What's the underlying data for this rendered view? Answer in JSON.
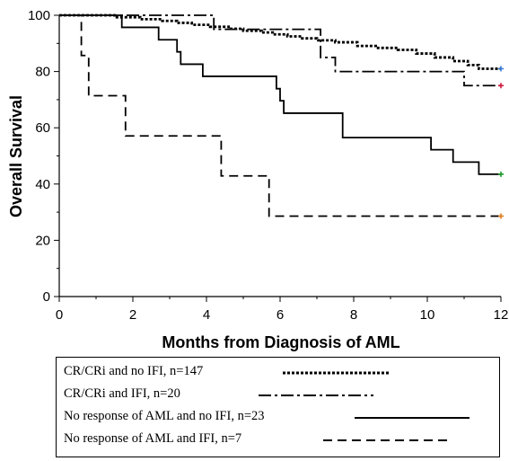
{
  "chart_data": {
    "type": "line",
    "xlabel": "Months from Diagnosis of AML",
    "ylabel": "Overall Survival",
    "xlim": [
      0,
      12
    ],
    "ylim": [
      0,
      100
    ],
    "xticks": [
      0,
      2,
      4,
      6,
      8,
      10,
      12
    ],
    "yticks": [
      0,
      20,
      40,
      60,
      80,
      100
    ],
    "grid": false,
    "legend": "bottom",
    "series": [
      {
        "name": "CR/CRi and no IFI, n=147",
        "style": "dotted",
        "censor_color": "#3a7fd5",
        "x": [
          0,
          1.5,
          2.2,
          2.8,
          3.2,
          3.6,
          4.1,
          4.6,
          5.0,
          5.5,
          5.8,
          6.2,
          6.6,
          7.0,
          7.5,
          8.1,
          8.6,
          9.2,
          9.7,
          10.2,
          10.7,
          11.1,
          11.4,
          12
        ],
        "y": [
          100,
          99.3,
          98.6,
          98.0,
          97.3,
          96.6,
          95.9,
          95.2,
          94.5,
          93.9,
          93.2,
          92.5,
          91.8,
          91.1,
          90.4,
          89.1,
          88.4,
          87.7,
          86.4,
          85.0,
          83.7,
          82.3,
          81.0,
          81.0
        ]
      },
      {
        "name": "CR/CRi and IFI, n=20",
        "style": "dashdot",
        "censor_color": "#d11a3d",
        "x": [
          0,
          4.2,
          6.9,
          7.1,
          7.5,
          11.0,
          12
        ],
        "y": [
          100,
          95,
          95,
          85,
          80,
          75,
          75
        ]
      },
      {
        "name": "No response of AML and no IFI, n=23",
        "style": "solid",
        "censor_color": "#1a9a2a",
        "x": [
          0,
          1.7,
          2.7,
          3.2,
          3.3,
          3.9,
          5.9,
          6.0,
          6.1,
          7.7,
          10.1,
          10.7,
          11.4,
          12
        ],
        "y": [
          100,
          95.7,
          91.3,
          87.0,
          82.6,
          78.3,
          73.9,
          69.6,
          65.2,
          56.5,
          52.2,
          47.8,
          43.5,
          43.5
        ]
      },
      {
        "name": "No response of AML and IFI, n=7",
        "style": "dashed",
        "censor_color": "#e07a1a",
        "x": [
          0,
          0.6,
          0.8,
          1.8,
          4.4,
          5.7,
          12
        ],
        "y": [
          100,
          85.7,
          71.4,
          57.1,
          42.9,
          28.6,
          28.6
        ]
      }
    ]
  }
}
